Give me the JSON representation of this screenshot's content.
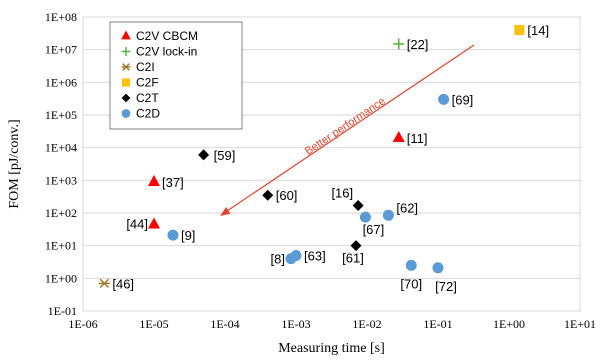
{
  "chart_data": {
    "type": "scatter",
    "title": "",
    "xlabel": "Measuring time [s]",
    "ylabel": "FOM [pJ/conv.]",
    "x_scale": "log",
    "y_scale": "log",
    "xlim": [
      1e-06,
      10
    ],
    "ylim": [
      0.1,
      100000000
    ],
    "x_tick_labels": [
      "1E-06",
      "1E-05",
      "1E-04",
      "1E-03",
      "1E-02",
      "1E-01",
      "1E+00",
      "1E+01"
    ],
    "y_tick_labels": [
      "1E-01",
      "1E+00",
      "1E+01",
      "1E+02",
      "1E+03",
      "1E+04",
      "1E+05",
      "1E+06",
      "1E+07",
      "1E+08"
    ],
    "grid": "horizontal",
    "legend_position": "top-left",
    "annotation": {
      "text": "Better performance",
      "color": "#e0442e"
    },
    "series": [
      {
        "name": "C2V CBCM",
        "marker": "triangle",
        "color": "#ff0000",
        "points": [
          {
            "x": 1e-05,
            "y": 900,
            "label": "[37]"
          },
          {
            "x": 1e-05,
            "y": 45,
            "label": "[44]"
          },
          {
            "x": 0.028,
            "y": 20000,
            "label": "[11]"
          }
        ]
      },
      {
        "name": "C2V lock-in",
        "marker": "plus",
        "color": "#5cae3a",
        "points": [
          {
            "x": 0.028,
            "y": 15000000,
            "label": "[22]"
          }
        ]
      },
      {
        "name": "C2I",
        "marker": "asterisk",
        "color": "#9c7a2c",
        "points": [
          {
            "x": 2e-06,
            "y": 0.7,
            "label": "[46]"
          }
        ]
      },
      {
        "name": "C2F",
        "marker": "square",
        "color": "#ffc000",
        "points": [
          {
            "x": 1.4,
            "y": 40000000,
            "label": "[14]"
          }
        ]
      },
      {
        "name": "C2T",
        "marker": "diamond",
        "color": "#000000",
        "points": [
          {
            "x": 5e-05,
            "y": 6000,
            "label": "[59]"
          },
          {
            "x": 0.0004,
            "y": 350,
            "label": "[60]"
          },
          {
            "x": 0.0075,
            "y": 170,
            "label": "[16]"
          },
          {
            "x": 0.007,
            "y": 10,
            "label": "[61]"
          }
        ]
      },
      {
        "name": "C2D",
        "marker": "circle",
        "color": "#5b9bd5",
        "points": [
          {
            "x": 1.85e-05,
            "y": 21,
            "label": "[9]"
          },
          {
            "x": 0.00085,
            "y": 4,
            "label": "[8]"
          },
          {
            "x": 0.001,
            "y": 5,
            "label": "[63]"
          },
          {
            "x": 0.0095,
            "y": 75,
            "label": "[67]"
          },
          {
            "x": 0.02,
            "y": 85,
            "label": "[62]"
          },
          {
            "x": 0.042,
            "y": 2.5,
            "label": "[70]"
          },
          {
            "x": 0.1,
            "y": 2.1,
            "label": "[72]"
          },
          {
            "x": 0.12,
            "y": 300000,
            "label": "[69]"
          }
        ]
      }
    ]
  }
}
